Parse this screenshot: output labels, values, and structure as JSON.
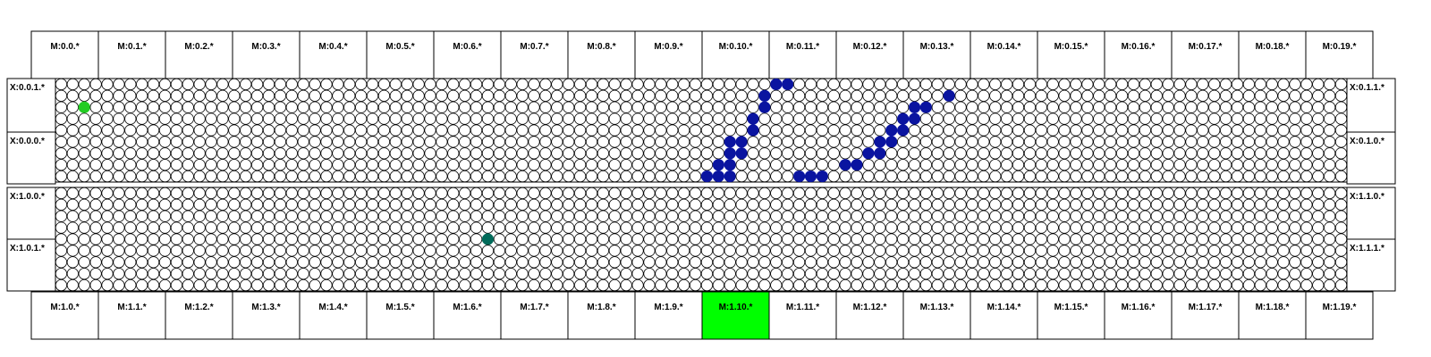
{
  "top_bank": [
    "M:0.0.*",
    "M:0.1.*",
    "M:0.2.*",
    "M:0.3.*",
    "M:0.4.*",
    "M:0.5.*",
    "M:0.6.*",
    "M:0.7.*",
    "M:0.8.*",
    "M:0.9.*",
    "M:0.10.*",
    "M:0.11.*",
    "M:0.12.*",
    "M:0.13.*",
    "M:0.14.*",
    "M:0.15.*",
    "M:0.16.*",
    "M:0.17.*",
    "M:0.18.*",
    "M:0.19.*"
  ],
  "bottom_bank": [
    "M:1.0.*",
    "M:1.1.*",
    "M:1.2.*",
    "M:1.3.*",
    "M:1.4.*",
    "M:1.5.*",
    "M:1.6.*",
    "M:1.7.*",
    "M:1.8.*",
    "M:1.9.*",
    "M:1.10.*",
    "M:1.11.*",
    "M:1.12.*",
    "M:1.13.*",
    "M:1.14.*",
    "M:1.15.*",
    "M:1.16.*",
    "M:1.17.*",
    "M:1.18.*",
    "M:1.19.*"
  ],
  "highlighted_bottom_index": 10,
  "left_labels": [
    "X:0.0.1.*",
    "X:0.0.0.*",
    "X:1.0.0.*",
    "X:1.0.1.*"
  ],
  "right_labels": [
    "X:0.1.1.*",
    "X:0.1.0.*",
    "X:1.1.0.*",
    "X:1.1.1.*"
  ],
  "grid": {
    "columns": 112,
    "rows_per_panel": 9
  },
  "colors": {
    "highlight": "#00ff00",
    "path_node": "#0a14a0",
    "start_node": "#22cc22",
    "teal_node": "#006b5a",
    "node_empty": "#ffffff",
    "stroke": "#000000"
  },
  "path_nodes": [
    [
      1,
      77
    ],
    [
      2,
      75
    ],
    [
      2,
      74
    ],
    [
      3,
      74
    ],
    [
      3,
      73
    ],
    [
      4,
      73
    ],
    [
      4,
      72
    ],
    [
      5,
      72
    ],
    [
      5,
      71
    ],
    [
      6,
      71
    ],
    [
      6,
      70
    ],
    [
      7,
      69
    ],
    [
      7,
      68
    ],
    [
      8,
      66
    ],
    [
      8,
      65
    ],
    [
      8,
      64
    ],
    [
      0,
      63
    ],
    [
      0,
      62
    ],
    [
      1,
      61
    ],
    [
      2,
      61
    ],
    [
      3,
      60
    ],
    [
      4,
      60
    ],
    [
      5,
      59
    ],
    [
      5,
      58
    ],
    [
      6,
      59
    ],
    [
      6,
      58
    ],
    [
      7,
      58
    ],
    [
      7,
      57
    ],
    [
      8,
      58
    ],
    [
      8,
      57
    ],
    [
      8,
      56
    ]
  ],
  "start_nodes": [
    [
      2,
      2
    ]
  ],
  "teal_nodes": [
    [
      13,
      37
    ]
  ]
}
